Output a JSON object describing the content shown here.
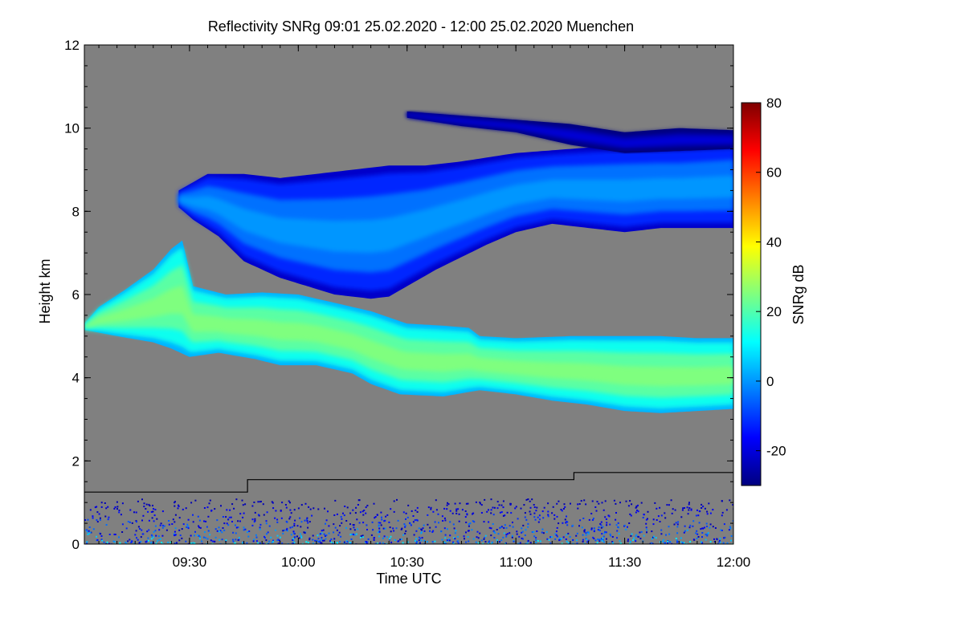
{
  "chart_data": {
    "type": "heatmap",
    "title": "Reflectivity SNRg   09:01 25.02.2020 - 12:00 25.02.2020 Muenchen",
    "xlabel": "Time UTC",
    "ylabel": "Height km",
    "x_range_minutes_utc": [
      541,
      720
    ],
    "x_ticks": [
      {
        "minutes": 570,
        "label": "09:30"
      },
      {
        "minutes": 600,
        "label": "10:00"
      },
      {
        "minutes": 630,
        "label": "10:30"
      },
      {
        "minutes": 660,
        "label": "11:00"
      },
      {
        "minutes": 690,
        "label": "11:30"
      },
      {
        "minutes": 720,
        "label": "12:00"
      }
    ],
    "ylim": [
      0,
      12
    ],
    "y_ticks": [
      {
        "value": 0,
        "label": "0"
      },
      {
        "value": 2,
        "label": "2"
      },
      {
        "value": 4,
        "label": "4"
      },
      {
        "value": 6,
        "label": "6"
      },
      {
        "value": 8,
        "label": "8"
      },
      {
        "value": 10,
        "label": "10"
      },
      {
        "value": 12,
        "label": "12"
      }
    ],
    "colorbar": {
      "label": "SNRg dB",
      "range": [
        -30,
        80
      ],
      "ticks": [
        {
          "value": -20,
          "label": "-20"
        },
        {
          "value": 0,
          "label": "0"
        },
        {
          "value": 20,
          "label": "20"
        },
        {
          "value": 40,
          "label": "40"
        },
        {
          "value": 60,
          "label": "60"
        },
        {
          "value": 80,
          "label": "80"
        }
      ],
      "colors": [
        "#00007f",
        "#0000ff",
        "#007fff",
        "#00ffff",
        "#7fff7f",
        "#ffff00",
        "#ff7f00",
        "#ff0000",
        "#7f0000"
      ]
    },
    "background_no_signal_color": "#808080",
    "cloud_layers": [
      {
        "name": "lower-layer",
        "points": [
          [
            541,
            5.3
          ],
          [
            545,
            5.7
          ],
          [
            552,
            6.1
          ],
          [
            560,
            6.6
          ],
          [
            565,
            7.1
          ],
          [
            568,
            7.3
          ],
          [
            571,
            6.2
          ],
          [
            580,
            6.0
          ],
          [
            590,
            6.05
          ],
          [
            600,
            6.0
          ],
          [
            610,
            5.8
          ],
          [
            620,
            5.6
          ],
          [
            630,
            5.3
          ],
          [
            640,
            5.25
          ],
          [
            647,
            5.2
          ],
          [
            650,
            5.0
          ],
          [
            660,
            4.95
          ],
          [
            675,
            5.0
          ],
          [
            690,
            5.0
          ],
          [
            700,
            5.0
          ],
          [
            710,
            4.95
          ],
          [
            720,
            4.95
          ]
        ],
        "bottom_points": [
          [
            541,
            5.15
          ],
          [
            550,
            5.0
          ],
          [
            560,
            4.85
          ],
          [
            565,
            4.7
          ],
          [
            570,
            4.5
          ],
          [
            578,
            4.6
          ],
          [
            588,
            4.45
          ],
          [
            595,
            4.3
          ],
          [
            605,
            4.3
          ],
          [
            615,
            4.1
          ],
          [
            620,
            3.85
          ],
          [
            628,
            3.6
          ],
          [
            640,
            3.55
          ],
          [
            650,
            3.7
          ],
          [
            660,
            3.6
          ],
          [
            670,
            3.45
          ],
          [
            680,
            3.35
          ],
          [
            690,
            3.2
          ],
          [
            700,
            3.15
          ],
          [
            710,
            3.2
          ],
          [
            720,
            3.25
          ]
        ],
        "core_value_db": 25
      },
      {
        "name": "upper-layer",
        "points": [
          [
            567,
            8.5
          ],
          [
            575,
            8.9
          ],
          [
            585,
            8.9
          ],
          [
            595,
            8.8
          ],
          [
            605,
            8.9
          ],
          [
            615,
            9.0
          ],
          [
            625,
            9.1
          ],
          [
            635,
            9.1
          ],
          [
            645,
            9.2
          ],
          [
            660,
            9.4
          ],
          [
            675,
            9.5
          ],
          [
            690,
            9.6
          ],
          [
            705,
            9.6
          ],
          [
            720,
            9.7
          ]
        ],
        "bottom_points": [
          [
            567,
            8.1
          ],
          [
            571,
            7.8
          ],
          [
            578,
            7.4
          ],
          [
            585,
            6.8
          ],
          [
            595,
            6.4
          ],
          [
            610,
            6.0
          ],
          [
            620,
            5.9
          ],
          [
            625,
            5.95
          ],
          [
            630,
            6.2
          ],
          [
            638,
            6.6
          ],
          [
            645,
            6.9
          ],
          [
            652,
            7.2
          ],
          [
            660,
            7.5
          ],
          [
            670,
            7.7
          ],
          [
            680,
            7.6
          ],
          [
            690,
            7.5
          ],
          [
            700,
            7.6
          ],
          [
            710,
            7.6
          ],
          [
            720,
            7.6
          ]
        ],
        "core_value_db": 0
      },
      {
        "name": "cirrus-streak",
        "points": [
          [
            630,
            10.4
          ],
          [
            645,
            10.3
          ],
          [
            660,
            10.2
          ],
          [
            675,
            10.1
          ],
          [
            690,
            9.9
          ],
          [
            705,
            10.0
          ],
          [
            720,
            9.95
          ]
        ],
        "bottom_points": [
          [
            630,
            10.25
          ],
          [
            645,
            10.05
          ],
          [
            660,
            9.9
          ],
          [
            675,
            9.6
          ],
          [
            690,
            9.4
          ],
          [
            705,
            9.45
          ],
          [
            720,
            9.5
          ]
        ],
        "core_value_db": -20
      }
    ],
    "boundary_layer_line": [
      [
        541,
        1.25
      ],
      [
        586,
        1.25
      ],
      [
        586,
        1.55
      ],
      [
        676,
        1.55
      ],
      [
        676,
        1.72
      ],
      [
        720,
        1.72
      ]
    ],
    "surface_clutter": {
      "top_km": 1.1,
      "bottom_km": 0.0
    }
  }
}
